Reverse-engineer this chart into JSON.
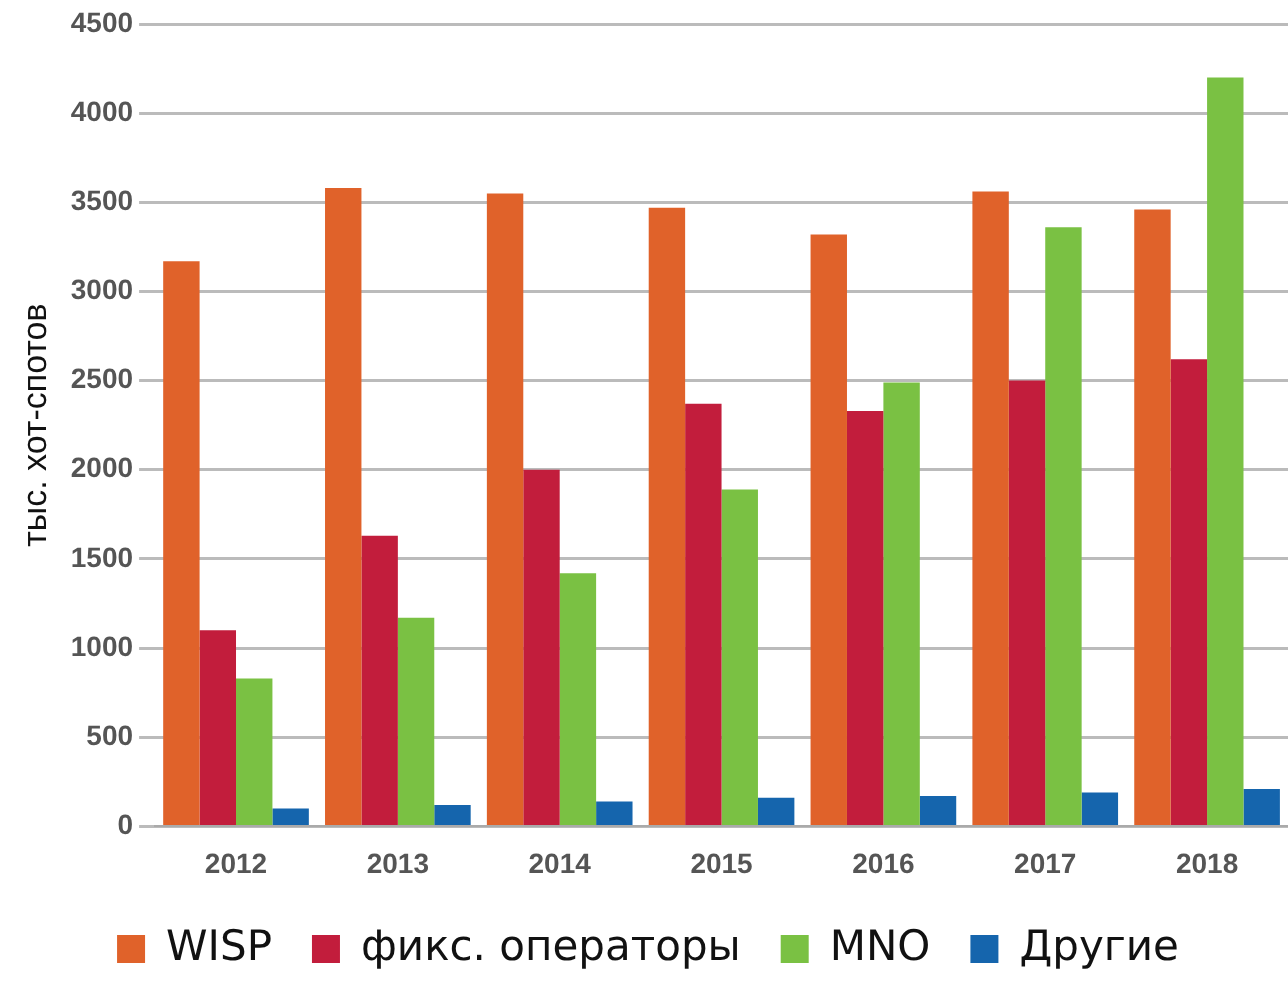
{
  "chart_data": {
    "type": "bar",
    "ylabel": "тыс. хот-спотов",
    "categories": [
      "2012",
      "2013",
      "2014",
      "2015",
      "2016",
      "2017",
      "2018"
    ],
    "series": [
      {
        "name": "WISP",
        "color": "#e0622a",
        "values": [
          3170,
          3580,
          3550,
          3470,
          3320,
          3560,
          3460
        ]
      },
      {
        "name": "фикс. операторы",
        "color": "#c21d3c",
        "values": [
          1100,
          1630,
          2000,
          2370,
          2330,
          2500,
          2620
        ]
      },
      {
        "name": "MNO",
        "color": "#7ac143",
        "values": [
          830,
          1170,
          1420,
          1890,
          2490,
          3360,
          4200
        ]
      },
      {
        "name": "Другие",
        "color": "#1565ad",
        "values": [
          100,
          120,
          140,
          160,
          170,
          190,
          210
        ]
      }
    ],
    "ylim": [
      0,
      4500
    ],
    "yticks": [
      0,
      500,
      1000,
      1500,
      2000,
      2500,
      3000,
      3500,
      4000,
      4500
    ],
    "grid": "y",
    "legend": "bottom"
  }
}
